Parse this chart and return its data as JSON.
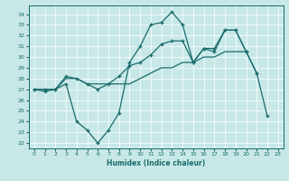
{
  "xlabel": "Humidex (Indice chaleur)",
  "xlim": [
    -0.5,
    23.5
  ],
  "ylim": [
    21.5,
    34.8
  ],
  "yticks": [
    22,
    23,
    24,
    25,
    26,
    27,
    28,
    29,
    30,
    31,
    32,
    33,
    34
  ],
  "xticks": [
    0,
    1,
    2,
    3,
    4,
    5,
    6,
    7,
    8,
    9,
    10,
    11,
    12,
    13,
    14,
    15,
    16,
    17,
    18,
    19,
    20,
    21,
    22,
    23
  ],
  "bg_color": "#c8e8e8",
  "line_color": "#1a6b6b",
  "line1_y": [
    27.0,
    26.8,
    27.0,
    27.5,
    24.0,
    23.2,
    22.0,
    23.2,
    24.8,
    29.5,
    31.0,
    33.0,
    33.2,
    34.2,
    33.0,
    29.5,
    30.8,
    30.8,
    32.5,
    32.5,
    30.5,
    28.5,
    null,
    null
  ],
  "line2_y": [
    27.0,
    27.0,
    27.0,
    28.0,
    28.0,
    27.5,
    27.5,
    27.5,
    27.5,
    27.5,
    28.0,
    28.5,
    29.0,
    29.0,
    29.5,
    29.5,
    30.0,
    30.0,
    30.5,
    30.5,
    30.5,
    null,
    null,
    null
  ],
  "line3_y": [
    27.0,
    27.0,
    27.0,
    28.2,
    28.0,
    27.5,
    27.0,
    27.5,
    28.2,
    29.2,
    29.5,
    30.2,
    31.2,
    31.5,
    31.5,
    29.5,
    30.8,
    30.5,
    32.5,
    32.5,
    30.5,
    28.5,
    24.5,
    null
  ]
}
